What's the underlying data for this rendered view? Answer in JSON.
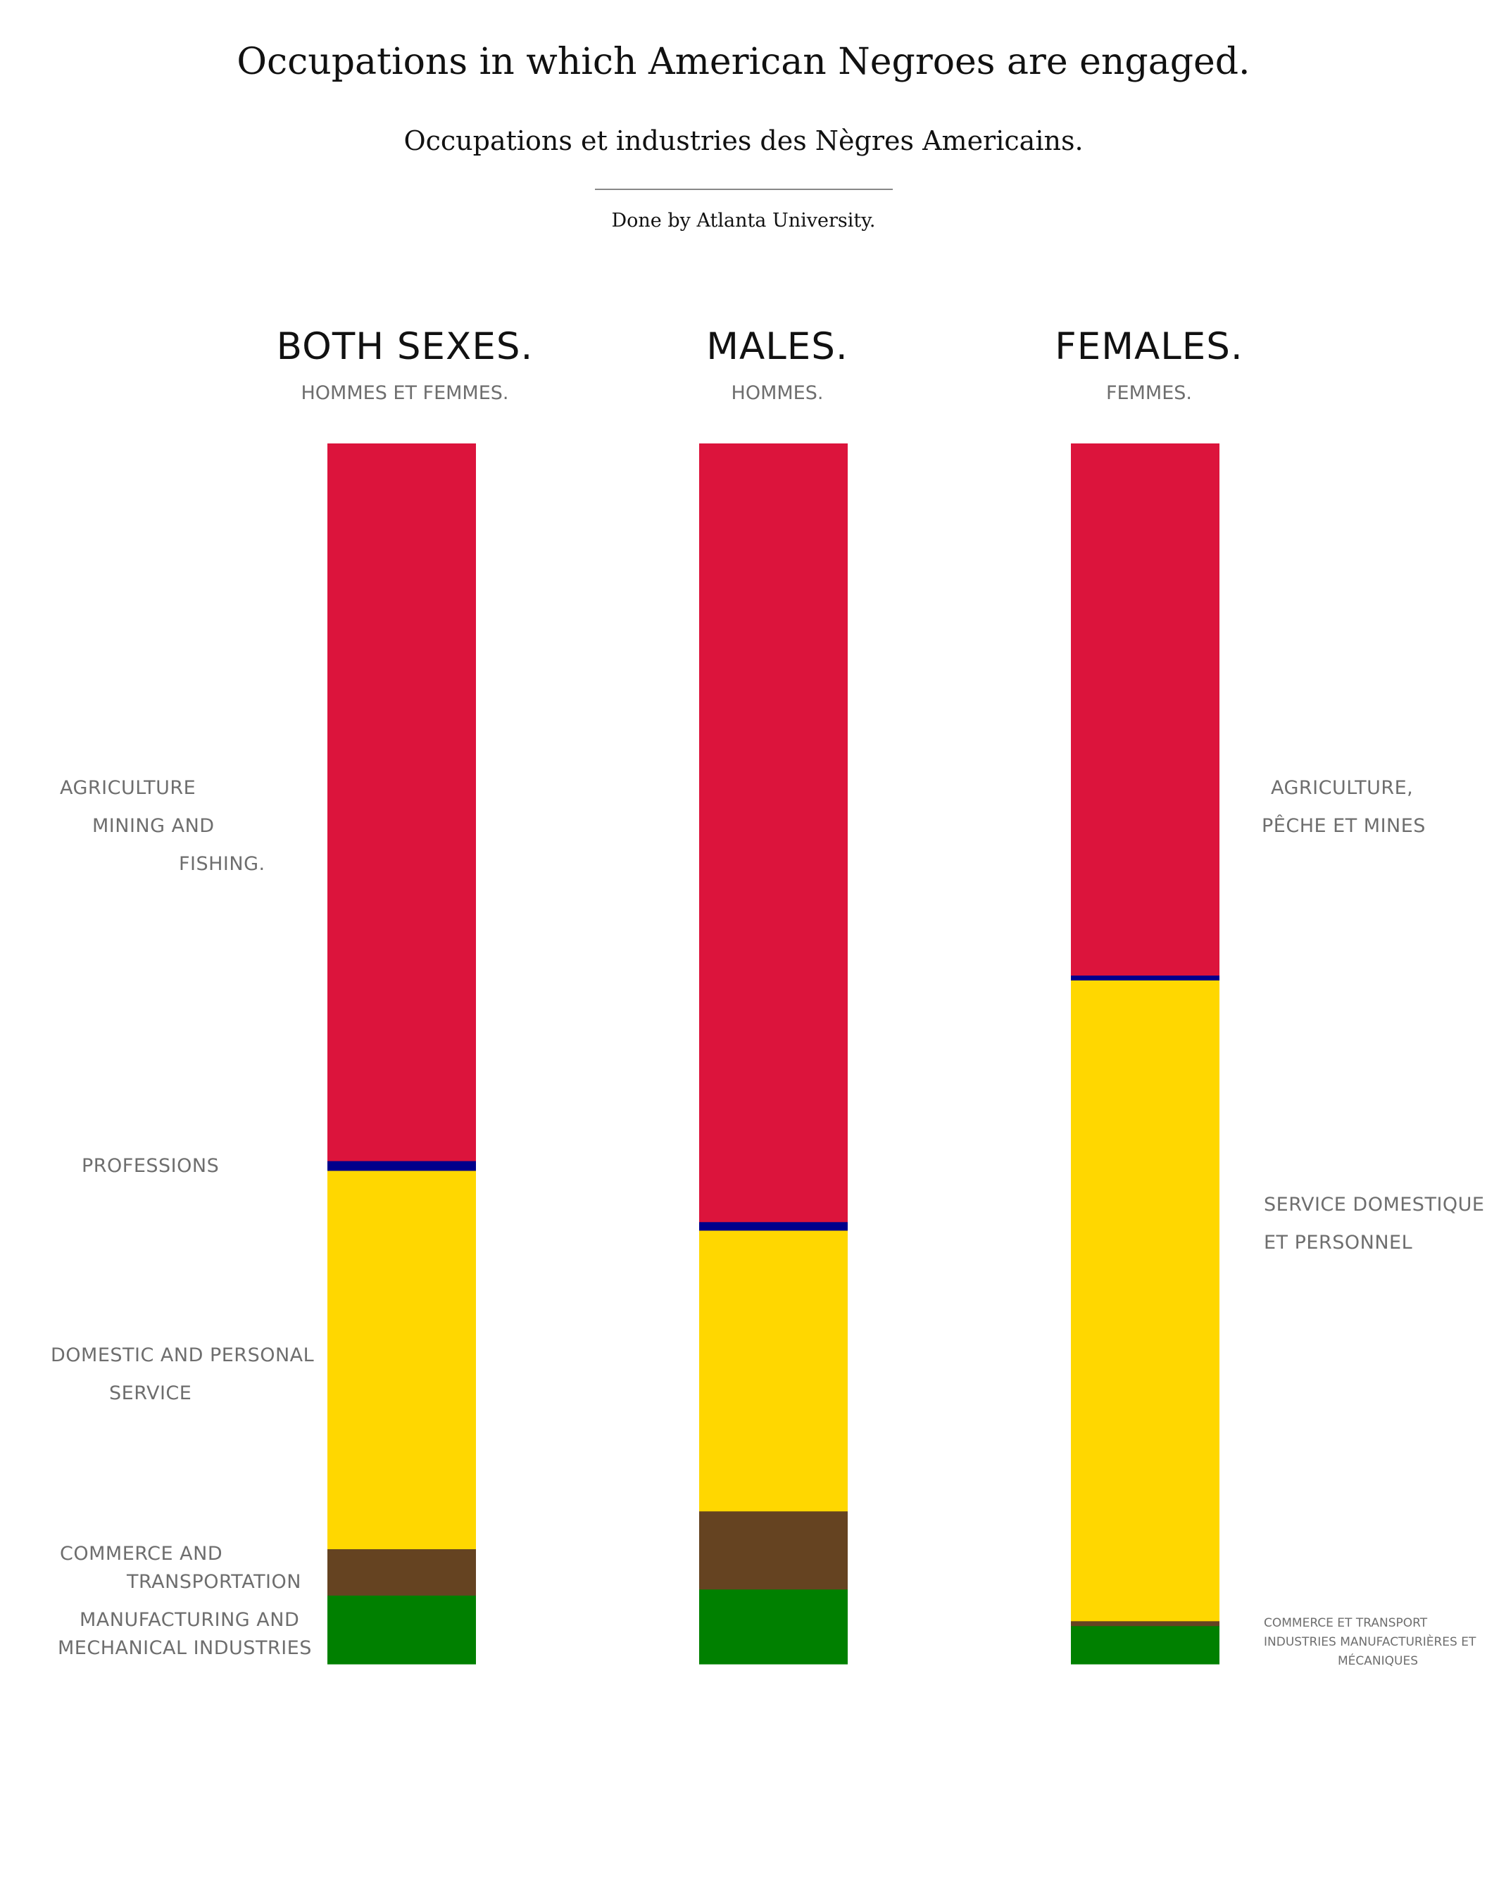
{
  "title": "Occupations in which American Negroes are engaged.",
  "subtitle": "Occupations et industries des Nègres Americains.",
  "credit": "Done by Atlanta University.",
  "columns": [
    {
      "heading": "BOTH SEXES.",
      "subheading": "HOMMES ET FEMMES."
    },
    {
      "heading": "MALES.",
      "subheading": "HOMMES."
    },
    {
      "heading": "FEMALES.",
      "subheading": "FEMMES."
    }
  ],
  "left_labels": {
    "agriculture": [
      "AGRICULTURE",
      "MINING AND",
      "FISHING."
    ],
    "professions": "PROFESSIONS",
    "domestic": [
      "DOMESTIC AND PERSONAL",
      "SERVICE"
    ],
    "commerce": [
      "COMMERCE  AND",
      "TRANSPORTATION"
    ],
    "manufacturing": [
      "MANUFACTURING   AND",
      "MECHANICAL INDUSTRIES"
    ]
  },
  "right_labels": {
    "agriculture": [
      "AGRICULTURE,",
      "PÊCHE ET MINES"
    ],
    "domestic": [
      "SERVICE DOMESTIQUE",
      "ET PERSONNEL"
    ],
    "commerce_manufacturing": [
      "COMMERCE ET TRANSPORT",
      "INDUSTRIES MANUFACTURIÈRES ET",
      "MÉCANIQUES"
    ]
  },
  "colors": {
    "agriculture": "#dc143c",
    "professions": "#00008b",
    "domestic": "#ffd700",
    "commerce": "#654321",
    "manufacturing": "#008000"
  },
  "chart_data": {
    "type": "bar",
    "stacked": true,
    "normalized": true,
    "categories": [
      "BOTH SEXES.",
      "MALES.",
      "FEMALES."
    ],
    "series": [
      {
        "key": "agriculture",
        "values": [
          58.8,
          63.8,
          43.6
        ]
      },
      {
        "key": "professions",
        "values": [
          0.8,
          0.7,
          0.4
        ]
      },
      {
        "key": "domestic",
        "values": [
          31.0,
          23.0,
          52.5
        ]
      },
      {
        "key": "commerce",
        "values": [
          3.8,
          6.4,
          0.4
        ]
      },
      {
        "key": "manufacturing",
        "values": [
          5.6,
          6.1,
          3.1
        ]
      }
    ],
    "ylim": [
      0,
      100
    ]
  }
}
